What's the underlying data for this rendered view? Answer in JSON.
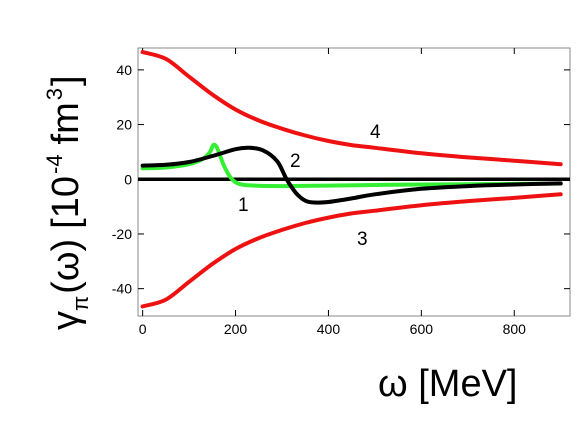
{
  "chart_data": {
    "type": "line",
    "xlabel": "ω [MeV]",
    "ylabel": {
      "symbol": "γ",
      "subscript": "π",
      "arg": "(ω)",
      "unit_open": "[10",
      "unit_exp": "-4",
      "unit_fm": "fm",
      "unit_fm_exp": "3",
      "unit_close": "]"
    },
    "xlim": [
      -10,
      920
    ],
    "ylim": [
      -50,
      48
    ],
    "x_ticks": [
      0,
      200,
      400,
      600,
      800
    ],
    "y_ticks": [
      -40,
      -20,
      0,
      20,
      40
    ],
    "grid": false,
    "zero_line": true,
    "series": [
      {
        "name": "1",
        "color": "#33ee33",
        "x": [
          0,
          50,
          100,
          130,
          145,
          152,
          160,
          175,
          190,
          210,
          250,
          300,
          400,
          500,
          600,
          700,
          800,
          900
        ],
        "y": [
          4,
          4.3,
          5.5,
          7.5,
          10,
          12.5,
          11.5,
          5,
          0.5,
          -1.8,
          -2.4,
          -2.5,
          -2.3,
          -2.1,
          -1.9,
          -1.8,
          -1.7,
          -1.6
        ]
      },
      {
        "name": "2",
        "color": "#000000",
        "x": [
          0,
          50,
          100,
          150,
          200,
          230,
          260,
          290,
          310,
          330,
          350,
          370,
          400,
          450,
          500,
          600,
          700,
          800,
          900
        ],
        "y": [
          5,
          5.3,
          6.3,
          8.5,
          11,
          11.5,
          10.5,
          6.5,
          0,
          -5,
          -7.8,
          -8.5,
          -8.3,
          -7,
          -5.5,
          -3.5,
          -2.5,
          -1.9,
          -1.5
        ]
      },
      {
        "name": "3",
        "color": "#ee1111",
        "x": [
          0,
          50,
          100,
          150,
          200,
          250,
          300,
          350,
          400,
          450,
          500,
          600,
          700,
          800,
          900
        ],
        "y": [
          -46.5,
          -44,
          -37.5,
          -31,
          -25.5,
          -21.5,
          -18.5,
          -16,
          -14,
          -12.5,
          -11.5,
          -9.5,
          -8,
          -6.8,
          -5.5
        ]
      },
      {
        "name": "4",
        "color": "#ee1111",
        "x": [
          0,
          50,
          100,
          150,
          200,
          250,
          300,
          350,
          400,
          450,
          500,
          600,
          700,
          800,
          900
        ],
        "y": [
          46.5,
          44,
          37.5,
          31,
          25.5,
          21.5,
          18.5,
          16,
          14,
          12.5,
          11.5,
          9.5,
          8,
          6.8,
          5.5
        ]
      }
    ]
  }
}
